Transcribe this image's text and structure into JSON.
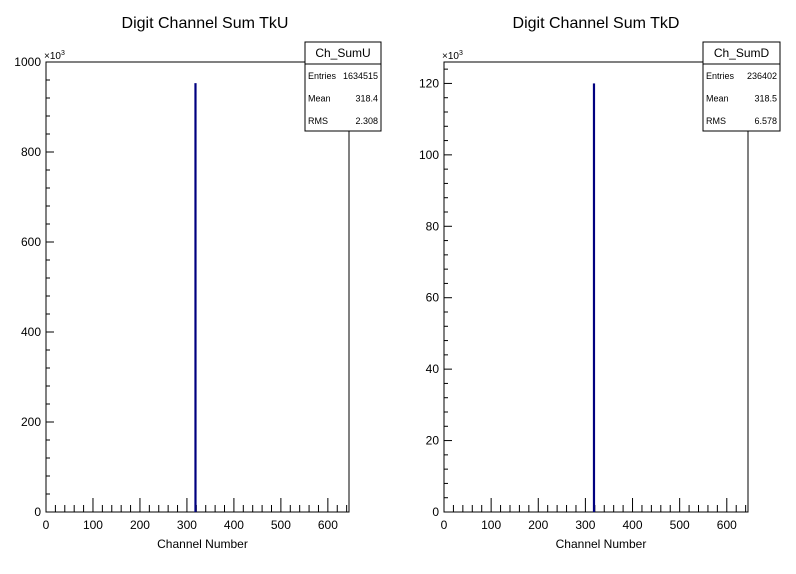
{
  "chart_data": [
    {
      "type": "bar",
      "title": "Digit Channel Sum TkU",
      "xlabel": "Channel Number",
      "ylabel": "",
      "multiplier_label": "×10",
      "multiplier_exp": "3",
      "xlim": [
        0,
        645
      ],
      "ylim": [
        0,
        1000
      ],
      "x_ticks": [
        0,
        100,
        200,
        300,
        400,
        500,
        600
      ],
      "y_ticks": [
        0,
        200,
        400,
        600,
        800,
        1000
      ],
      "grid": false,
      "series": [
        {
          "x": [
            318
          ],
          "values": [
            953
          ],
          "color": "#000080"
        }
      ],
      "stats_box": {
        "name": "Ch_SumU",
        "rows": [
          {
            "label": "Entries",
            "value": "1634515"
          },
          {
            "label": "Mean",
            "value": "318.4"
          },
          {
            "label": "RMS",
            "value": "2.308"
          }
        ]
      }
    },
    {
      "type": "bar",
      "title": "Digit Channel Sum TkD",
      "xlabel": "Channel Number",
      "ylabel": "",
      "multiplier_label": "×10",
      "multiplier_exp": "3",
      "xlim": [
        0,
        645
      ],
      "ylim": [
        0,
        126
      ],
      "x_ticks": [
        0,
        100,
        200,
        300,
        400,
        500,
        600
      ],
      "y_ticks": [
        0,
        20,
        40,
        60,
        80,
        100,
        120
      ],
      "grid": false,
      "series": [
        {
          "x": [
            318
          ],
          "values": [
            120
          ],
          "color": "#000080"
        }
      ],
      "stats_box": {
        "name": "Ch_SumD",
        "rows": [
          {
            "label": "Entries",
            "value": "236402"
          },
          {
            "label": "Mean",
            "value": "318.5"
          },
          {
            "label": "RMS",
            "value": "6.578"
          }
        ]
      }
    }
  ]
}
